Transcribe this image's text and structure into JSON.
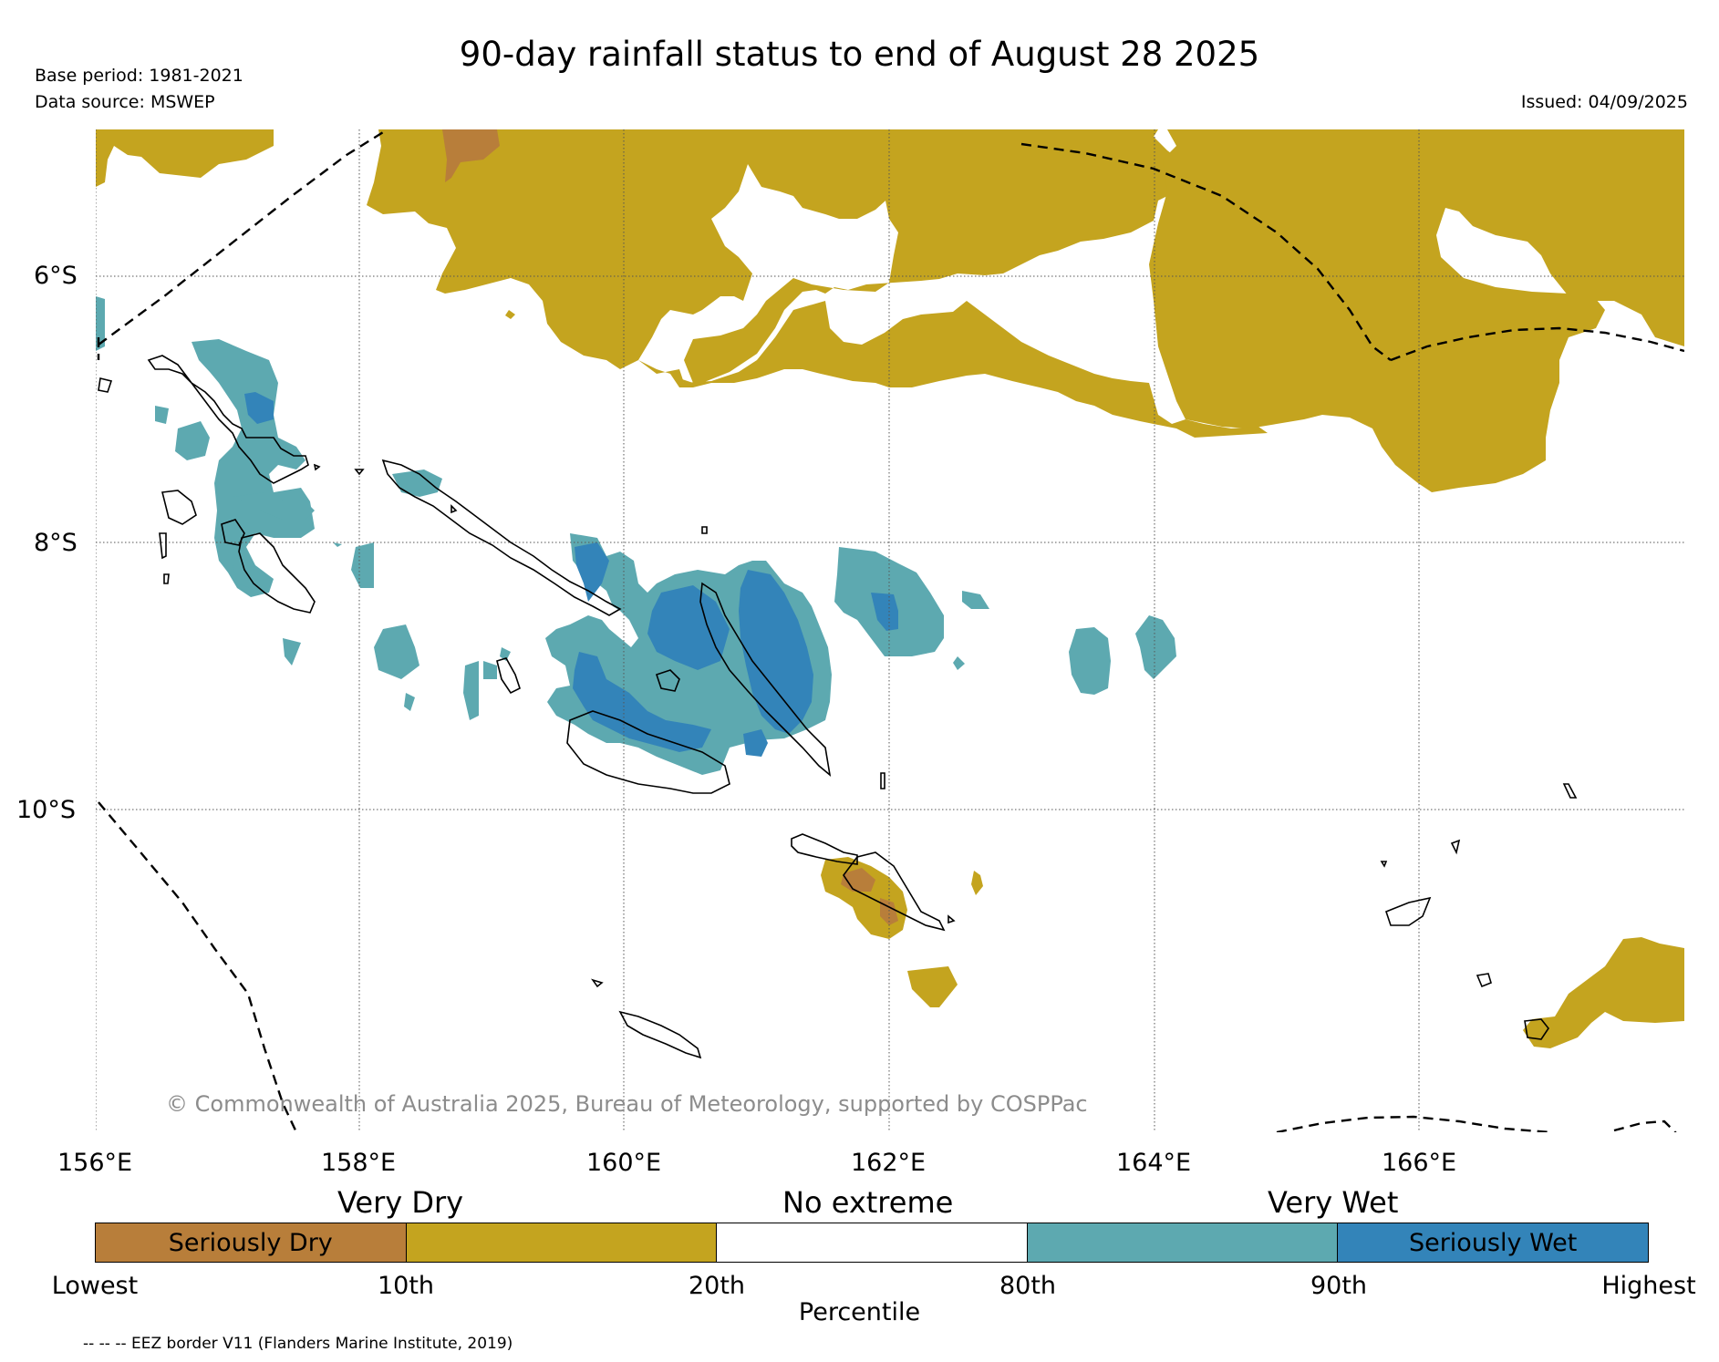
{
  "title": "90-day rainfall status to end of August 28 2025",
  "base_period": "Base period: 1981-2021",
  "data_source": "Data source: MSWEP",
  "issued": "Issued: 04/09/2025",
  "copyright": "© Commonwealth of Australia 2025, Bureau of Meteorology, supported by COSPPac",
  "lat_labels": [
    "6°S",
    "8°S",
    "10°S"
  ],
  "lon_labels": [
    "156°E",
    "158°E",
    "160°E",
    "162°E",
    "164°E",
    "166°E"
  ],
  "legend": {
    "headers": [
      "Very Dry",
      "No extreme",
      "Very Wet"
    ],
    "segments": [
      {
        "label": "Seriously Dry",
        "color": "#b87e3a"
      },
      {
        "label": "",
        "color": "#c4a41f"
      },
      {
        "label": "",
        "color": "#ffffff"
      },
      {
        "label": "",
        "color": "#5da9b0"
      },
      {
        "label": "Seriously Wet",
        "color": "#3384b9"
      }
    ],
    "ticks": [
      "Lowest",
      "10th",
      "20th",
      "80th",
      "90th",
      "Highest"
    ],
    "axis_label": "Percentile"
  },
  "eez_note": "-- -- -- EEZ border V11 (Flanders Marine Institute, 2019)",
  "colors": {
    "seriously_dry": "#b87e3a",
    "very_dry": "#c4a41f",
    "very_wet": "#5da9b0",
    "seriously_wet": "#3384b9"
  }
}
